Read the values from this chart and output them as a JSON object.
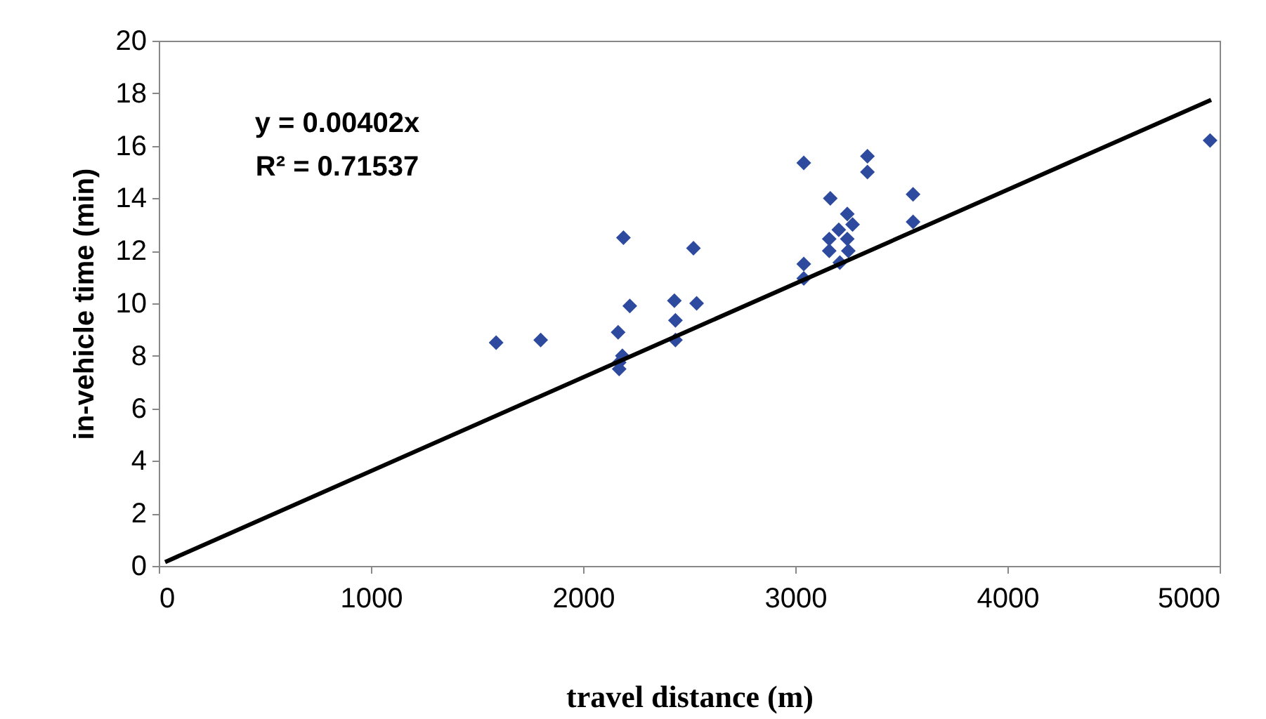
{
  "chart_data": {
    "type": "scatter",
    "xlabel": "travel distance (m)",
    "ylabel": "in-vehicle time (min)",
    "annotations": [
      "y = 0.00402x",
      "R² = 0.71537"
    ],
    "series": [
      {
        "color": "#2e4a9e",
        "marker": "diamond",
        "x": [
          1590,
          1800,
          2165,
          2185,
          2170,
          2170,
          2190,
          2220,
          2430,
          2435,
          2435,
          2520,
          2535,
          3040,
          3040,
          3040,
          3165,
          3245,
          3160,
          3160,
          3210,
          3250,
          3245,
          3270,
          3205,
          3340,
          3340,
          3555,
          3555,
          4955
        ],
        "values": [
          8.5,
          8.6,
          8.9,
          8.0,
          7.75,
          7.5,
          12.5,
          9.9,
          10.1,
          9.35,
          8.6,
          12.1,
          10.0,
          15.35,
          11.5,
          10.95,
          14.0,
          13.4,
          12.45,
          12.0,
          11.55,
          12.0,
          12.45,
          13.0,
          12.8,
          15.6,
          15.0,
          14.15,
          13.1,
          16.2
        ]
      },
      {
        "type": "line",
        "color": "#000000",
        "line_style": "solid",
        "marker": "none",
        "x": [
          30,
          4960
        ],
        "values": [
          0.15,
          17.75
        ]
      }
    ],
    "xlim": [
      0,
      5000
    ],
    "xticks": [
      0,
      1000,
      2000,
      3000,
      4000,
      5000
    ],
    "ylim": [
      0,
      20
    ],
    "yticks": [
      0,
      2,
      4,
      6,
      8,
      10,
      12,
      14,
      16,
      18,
      20
    ],
    "grid": false
  }
}
